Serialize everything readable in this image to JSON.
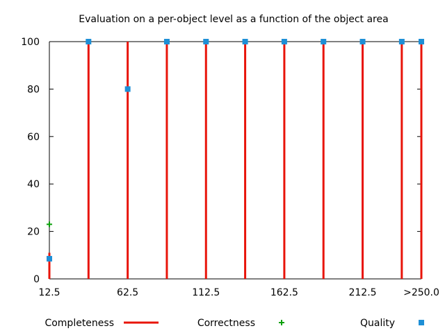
{
  "chart_data": {
    "type": "bar",
    "title": "Evaluation on a per-object level as a function of the object area",
    "xlabel": "",
    "ylabel": "",
    "x_ticks": [
      "12.5",
      "62.5",
      "112.5",
      "162.5",
      "212.5",
      ">250.0"
    ],
    "x_tick_values": [
      12.5,
      62.5,
      112.5,
      162.5,
      212.5,
      250
    ],
    "xlim": [
      12.5,
      250
    ],
    "ylim": [
      0,
      100
    ],
    "y_ticks": [
      0,
      20,
      40,
      60,
      80,
      100
    ],
    "grid": false,
    "legend_placement": "bottom",
    "series": [
      {
        "name": "Completeness",
        "style": "impulses",
        "color": "#e8140a",
        "x": [
          12.5,
          37.5,
          62.5,
          87.5,
          112.5,
          137.5,
          162.5,
          187.5,
          212.5,
          237.5,
          250
        ],
        "values": [
          11,
          100,
          100,
          100,
          100,
          100,
          100,
          100,
          100,
          100,
          100
        ]
      },
      {
        "name": "Correctness",
        "style": "points-plus",
        "color": "#0aa00a",
        "x": [
          12.5
        ],
        "values": [
          23
        ]
      },
      {
        "name": "Quality",
        "style": "points-square",
        "color": "#1e8fd6",
        "x": [
          12.5,
          37.5,
          62.5,
          87.5,
          112.5,
          137.5,
          162.5,
          187.5,
          212.5,
          237.5,
          250
        ],
        "values": [
          8.5,
          100,
          80,
          100,
          100,
          100,
          100,
          100,
          100,
          100,
          100
        ]
      }
    ]
  }
}
